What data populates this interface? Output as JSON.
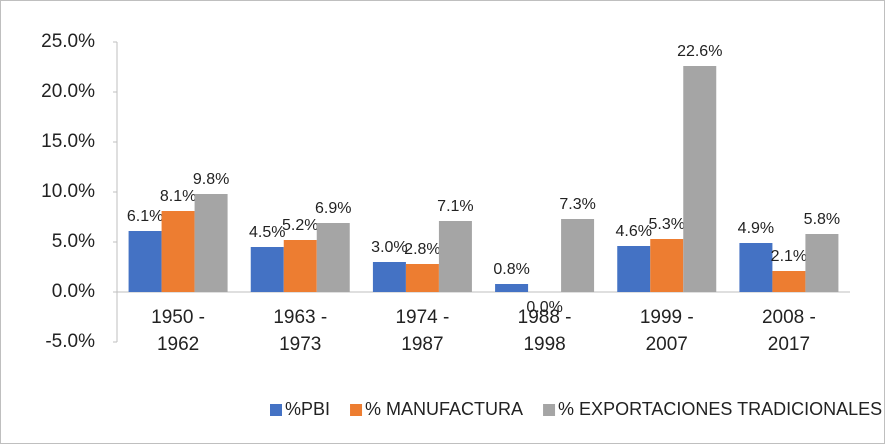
{
  "chart_data": {
    "type": "bar",
    "categories": [
      "1950 - 1962",
      "1963 - 1973",
      "1974 - 1987",
      "1988 - 1998",
      "1999 - 2007",
      "2008 - 2017"
    ],
    "series": [
      {
        "name": "%PBI",
        "color": "#4472c4",
        "values": [
          6.1,
          4.5,
          3.0,
          0.8,
          4.6,
          4.9
        ],
        "value_labels": [
          "6.1%",
          "4.5%",
          "3.0%",
          "0.8%",
          "4.6%",
          "4.9%"
        ]
      },
      {
        "name": "% MANUFACTURA",
        "color": "#ed7d31",
        "values": [
          8.1,
          5.2,
          2.8,
          0.0,
          5.3,
          2.1
        ],
        "value_labels": [
          "8.1%",
          "5.2%",
          "2.8%",
          "0.0%",
          "5.3%",
          "2.1%"
        ]
      },
      {
        "name": "% EXPORTACIONES TRADICIONALES",
        "color": "#a5a5a5",
        "values": [
          9.8,
          6.9,
          7.1,
          7.3,
          22.6,
          5.8
        ],
        "value_labels": [
          "9.8%",
          "6.9%",
          "7.1%",
          "7.3%",
          "22.6%",
          "5.8%"
        ]
      }
    ],
    "ylim": [
      -5,
      25
    ],
    "yticks": [
      {
        "value": -5,
        "label": "-5.0%"
      },
      {
        "value": 0,
        "label": "0.0%"
      },
      {
        "value": 5,
        "label": "5.0%"
      },
      {
        "value": 10,
        "label": "10.0%"
      },
      {
        "value": 15,
        "label": "15.0%"
      },
      {
        "value": 20,
        "label": "20.0%"
      },
      {
        "value": 25,
        "label": "25.0%"
      }
    ],
    "grid": false,
    "legend": "bottom"
  }
}
